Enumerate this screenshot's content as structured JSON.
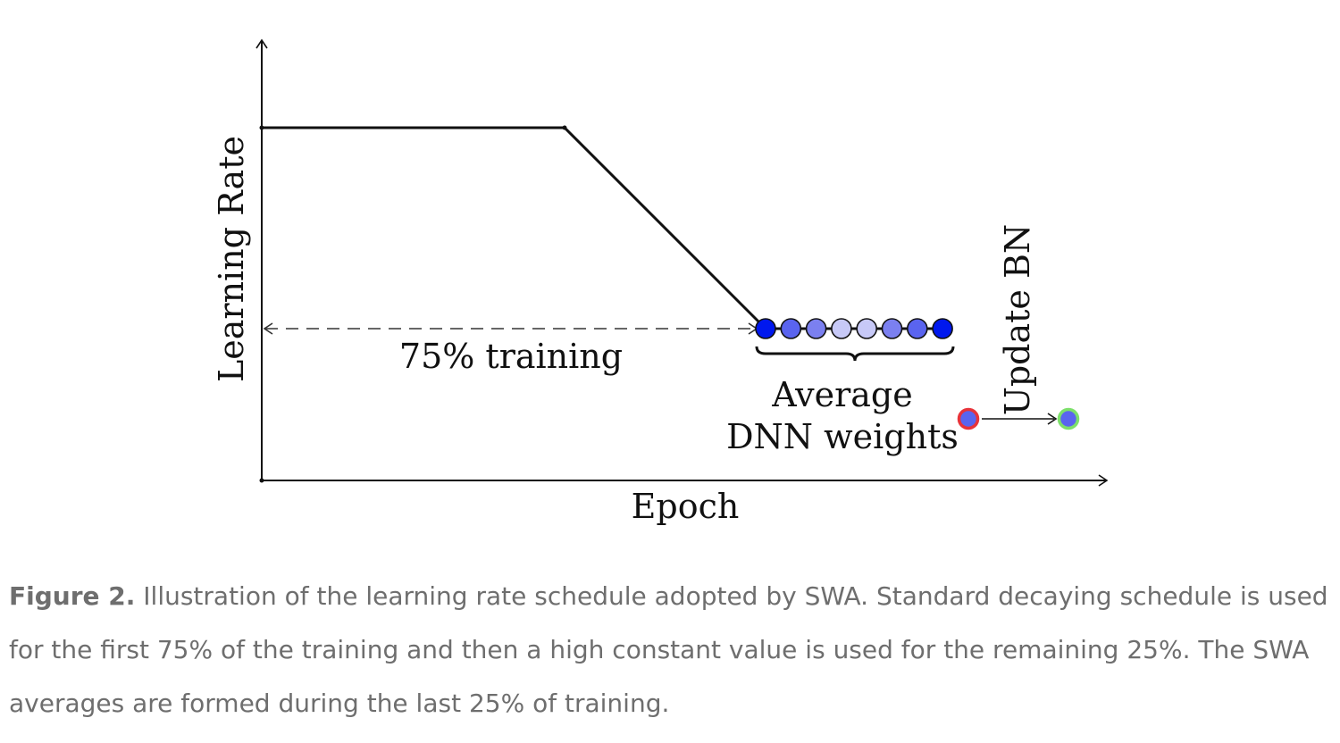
{
  "figure": {
    "y_axis_label": "Learning Rate",
    "x_axis_label": "Epoch",
    "training_label": "75% training",
    "average_label_line1": "Average",
    "average_label_line2": "DNN weights",
    "update_bn_label": "Update BN",
    "weight_dot_colors": [
      "#0018ee",
      "#5a64ef",
      "#7b80f0",
      "#c7c9f7",
      "#c7c9f7",
      "#7b80f0",
      "#5a64ef",
      "#0018ee"
    ],
    "before_bn_ring_color": "#e8333a",
    "after_bn_ring_color": "#7de06a",
    "bn_dot_fill": "#5a64ef"
  },
  "caption": {
    "label": "Figure 2.",
    "text": " Illustration of the learning rate schedule adopted by SWA. Standard decaying schedule is used for the first 75% of the training and then a high constant value is used for the remaining 25%. The SWA averages are formed during the last 25% of training."
  }
}
